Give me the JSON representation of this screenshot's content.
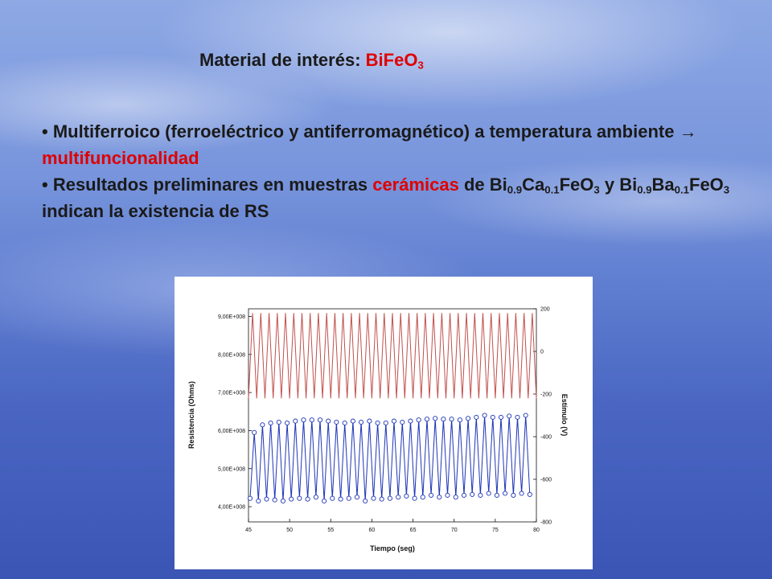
{
  "slide": {
    "title_prefix": "Material de interés: ",
    "title_formula_main": "BiFeO",
    "title_formula_sub": "3",
    "bullet_char": "•",
    "bullet1": {
      "text1": " Multiferroico (ferroeléctrico y antiferromagnético) a temperatura ambiente ",
      "arrow": "→",
      "highlight": " multifuncionalidad"
    },
    "bullet2": {
      "text1": " Resultados preliminares en muestras ",
      "highlight": "cerámicas",
      "text2": " de ",
      "f1": [
        "Bi",
        "0.9",
        "Ca",
        "0.1",
        "FeO",
        "3"
      ],
      "join": " y ",
      "f2": [
        "Bi",
        "0.9",
        "Ba",
        "0.1",
        "FeO",
        "3"
      ],
      "tail": " indican la existencia de RS"
    }
  },
  "colors": {
    "highlight": "#e00000",
    "text": "#1a1a1a",
    "stimulus": "#c0504d",
    "resistance": "#1f35b5"
  },
  "chart_data": {
    "type": "line",
    "xlabel": "Tiempo (seg)",
    "ylabel_left": "Resistencia (Ohms)",
    "ylabel_right": "Estímulo (V)",
    "xlim": [
      45,
      80
    ],
    "x_ticks": [
      45,
      50,
      55,
      60,
      65,
      70,
      75,
      80
    ],
    "ylim_left": [
      360000000.0,
      920000000.0
    ],
    "y_ticks_left": [
      "4,00E+008",
      "5,00E+008",
      "6,00E+008",
      "7,00E+008",
      "8,00E+008",
      "9,00E+008"
    ],
    "y_ticks_left_values": [
      400000000.0,
      500000000.0,
      600000000.0,
      700000000.0,
      800000000.0,
      900000000.0
    ],
    "ylim_right": [
      -800,
      200
    ],
    "y_ticks_right": [
      200,
      0,
      -200,
      -400,
      -600,
      -800
    ],
    "series": [
      {
        "axis": "right",
        "style": "line",
        "period_s": 1.0,
        "first_peak_s": 45.5,
        "peak_value": 180,
        "trough_value": -220,
        "x_range": [
          45,
          80
        ]
      },
      {
        "axis": "left",
        "style": "line+open-circles",
        "period_s": 1.0,
        "peak_x": [
          45.7,
          46.7,
          47.7,
          48.7,
          49.7,
          50.7,
          51.7,
          52.7,
          53.7,
          54.7,
          55.7,
          56.7,
          57.7,
          58.7,
          59.7,
          60.7,
          61.7,
          62.7,
          63.7,
          64.7,
          65.7,
          66.7,
          67.7,
          68.7,
          69.7,
          70.7,
          71.7,
          72.7,
          73.7,
          74.7,
          75.7,
          76.7,
          77.7,
          78.7
        ],
        "peaks": [
          595000000.0,
          615000000.0,
          620000000.0,
          622000000.0,
          620000000.0,
          625000000.0,
          628000000.0,
          628000000.0,
          628000000.0,
          625000000.0,
          622000000.0,
          620000000.0,
          625000000.0,
          622000000.0,
          625000000.0,
          620000000.0,
          620000000.0,
          625000000.0,
          622000000.0,
          625000000.0,
          628000000.0,
          630000000.0,
          632000000.0,
          630000000.0,
          630000000.0,
          628000000.0,
          632000000.0,
          635000000.0,
          640000000.0,
          635000000.0,
          635000000.0,
          638000000.0,
          635000000.0,
          640000000.0
        ],
        "trough_x": [
          45.2,
          46.2,
          47.2,
          48.2,
          49.2,
          50.2,
          51.2,
          52.2,
          53.2,
          54.2,
          55.2,
          56.2,
          57.2,
          58.2,
          59.2,
          60.2,
          61.2,
          62.2,
          63.2,
          64.2,
          65.2,
          66.2,
          67.2,
          68.2,
          69.2,
          70.2,
          71.2,
          72.2,
          73.2,
          74.2,
          75.2,
          76.2,
          77.2,
          78.2,
          79.2
        ],
        "troughs": [
          422000000.0,
          415000000.0,
          420000000.0,
          418000000.0,
          415000000.0,
          420000000.0,
          422000000.0,
          420000000.0,
          425000000.0,
          415000000.0,
          422000000.0,
          420000000.0,
          422000000.0,
          425000000.0,
          415000000.0,
          422000000.0,
          420000000.0,
          422000000.0,
          425000000.0,
          428000000.0,
          422000000.0,
          425000000.0,
          430000000.0,
          425000000.0,
          430000000.0,
          425000000.0,
          430000000.0,
          432000000.0,
          430000000.0,
          435000000.0,
          430000000.0,
          435000000.0,
          430000000.0,
          435000000.0,
          432000000.0
        ]
      }
    ]
  }
}
